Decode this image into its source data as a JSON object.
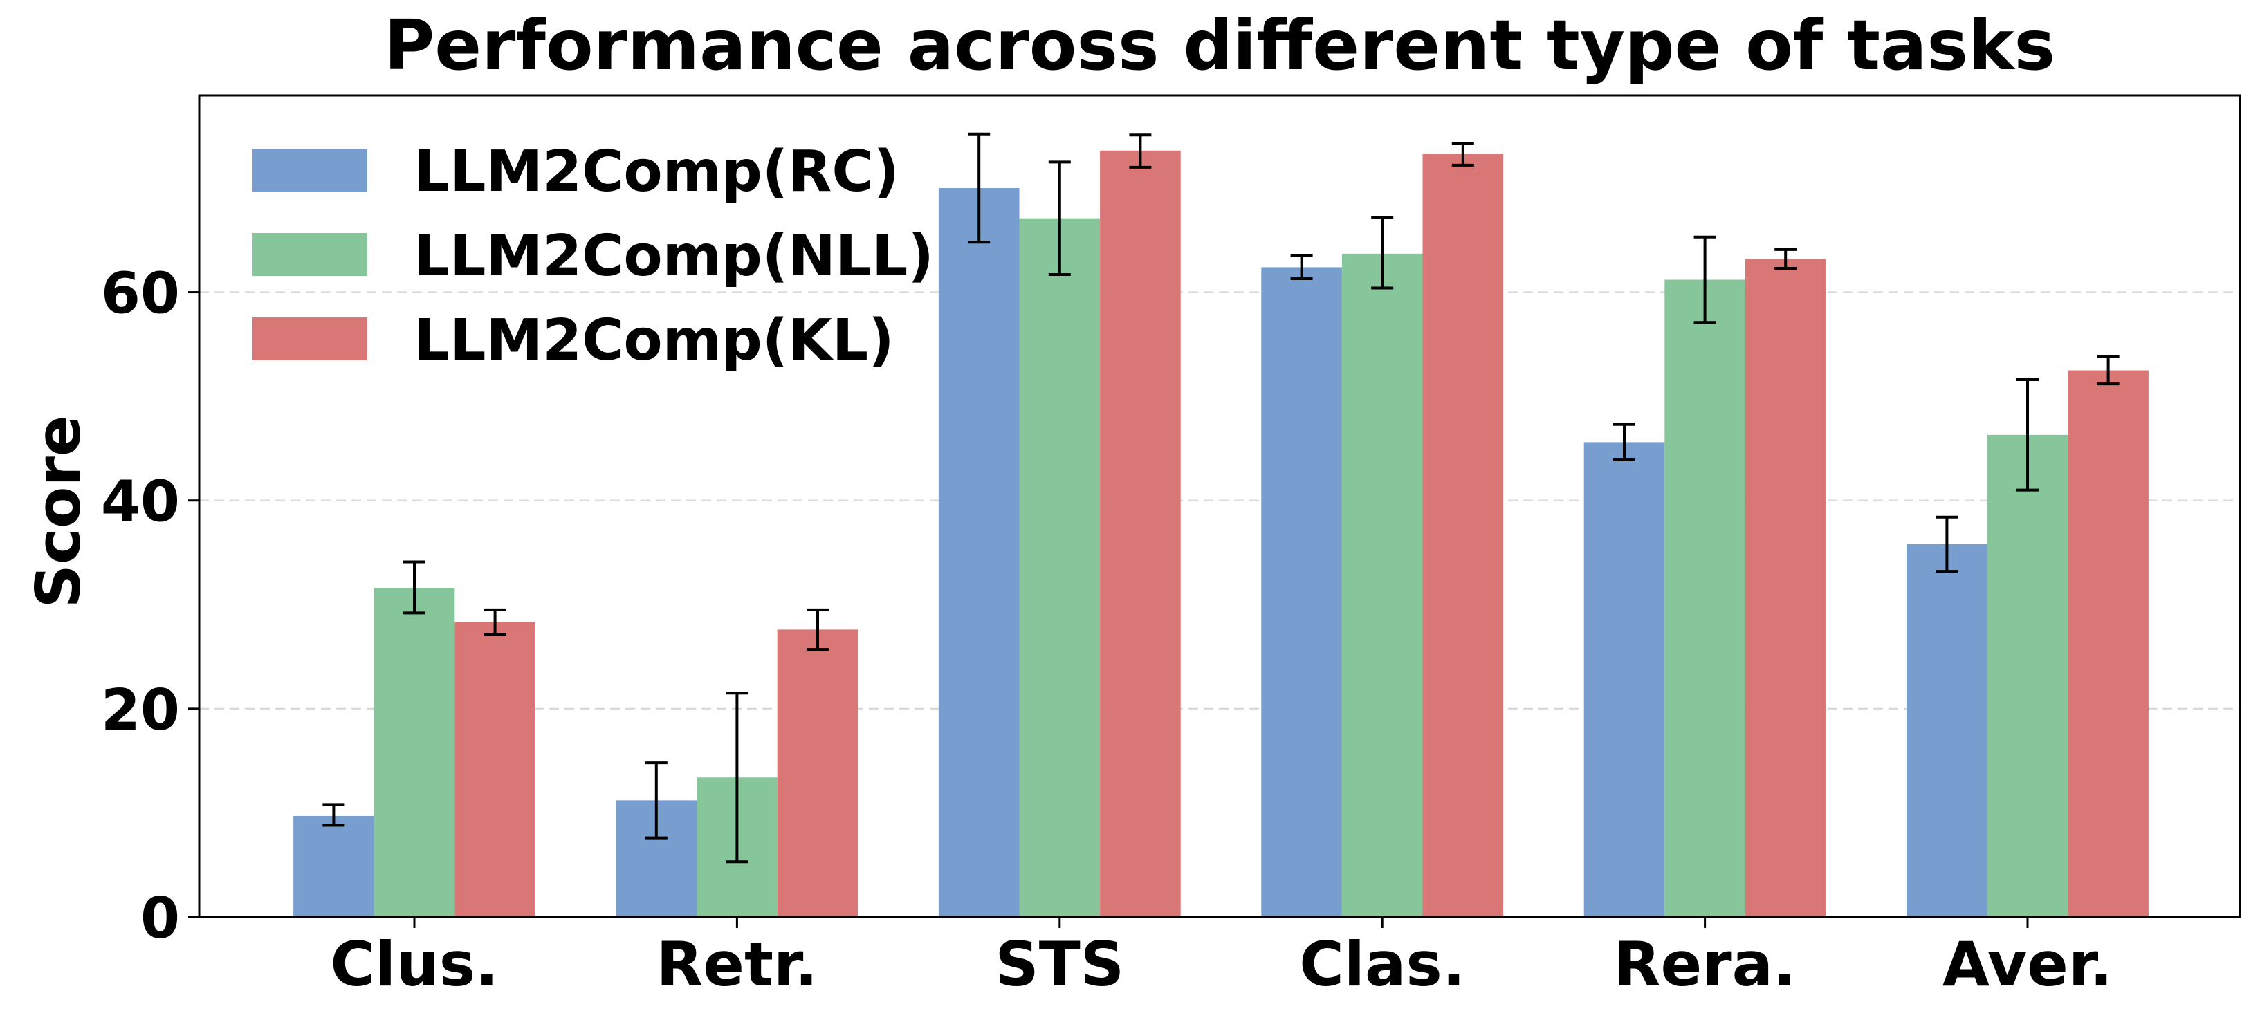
{
  "chart_data": {
    "type": "bar",
    "title": "Performance across different type of tasks",
    "xlabel": "",
    "ylabel": "Score",
    "ylim": [
      0,
      78.9
    ],
    "yticks": [
      0,
      20,
      40,
      60
    ],
    "grid": "horizontal-dashed",
    "legend_position": "top-left",
    "categories": [
      "Clus.",
      "Retr.",
      "STS",
      "Clas.",
      "Rera.",
      "Aver."
    ],
    "series": [
      {
        "name": "LLM2Comp(RC)",
        "color": "#779ecf",
        "values": [
          9.7,
          11.2,
          70.0,
          62.4,
          45.6,
          35.8
        ],
        "err_low": [
          8.8,
          7.6,
          64.8,
          61.3,
          43.9,
          33.2
        ],
        "err_high": [
          10.8,
          14.8,
          75.2,
          63.5,
          47.3,
          38.4
        ]
      },
      {
        "name": "LLM2Comp(NLL)",
        "color": "#86c69a",
        "values": [
          31.6,
          13.4,
          67.1,
          63.7,
          61.2,
          46.3
        ],
        "err_low": [
          29.2,
          5.3,
          61.7,
          60.4,
          57.1,
          41.0
        ],
        "err_high": [
          34.1,
          21.5,
          72.5,
          67.2,
          65.3,
          51.6
        ]
      },
      {
        "name": "LLM2Comp(KL)",
        "color": "#d87776",
        "values": [
          28.3,
          27.6,
          73.6,
          73.3,
          63.2,
          52.5
        ],
        "err_low": [
          27.1,
          25.7,
          72.0,
          72.2,
          62.3,
          51.2
        ],
        "err_high": [
          29.5,
          29.5,
          75.1,
          74.3,
          64.1,
          53.8
        ]
      }
    ]
  }
}
